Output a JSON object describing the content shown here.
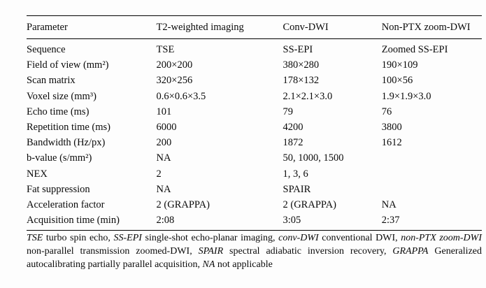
{
  "table": {
    "headers": [
      "Parameter",
      "T2-weighted imaging",
      "Conv-DWI",
      "Non-PTX zoom-DWI"
    ],
    "rows": [
      [
        "Sequence",
        "TSE",
        "SS-EPI",
        "Zoomed SS-EPI"
      ],
      [
        "Field of view (mm²)",
        "200×200",
        "380×280",
        "190×109"
      ],
      [
        "Scan matrix",
        "320×256",
        "178×132",
        "100×56"
      ],
      [
        "Voxel size (mm³)",
        "0.6×0.6×3.5",
        "2.1×2.1×3.0",
        "1.9×1.9×3.0"
      ],
      [
        "Echo time (ms)",
        "101",
        "79",
        "76"
      ],
      [
        "Repetition time (ms)",
        "6000",
        "4200",
        "3800"
      ],
      [
        "Bandwidth (Hz/px)",
        "200",
        "1872",
        "1612"
      ],
      [
        "b-value (s/mm²)",
        "NA",
        "50, 1000, 1500",
        ""
      ],
      [
        "NEX",
        "2",
        "1, 3, 6",
        ""
      ],
      [
        "Fat suppression",
        "NA",
        "SPAIR",
        ""
      ],
      [
        "Acceleration factor",
        "2 (GRAPPA)",
        "2 (GRAPPA)",
        "NA"
      ],
      [
        "Acquisition time (min)",
        "2:08",
        "3:05",
        "2:37"
      ]
    ]
  },
  "footnote": {
    "segments": [
      {
        "text": "TSE",
        "italic": true
      },
      {
        "text": " turbo spin echo, ",
        "italic": false
      },
      {
        "text": "SS-EPI",
        "italic": true
      },
      {
        "text": " single-shot echo-planar imaging, ",
        "italic": false
      },
      {
        "text": "conv-DWI",
        "italic": true
      },
      {
        "text": " conventional DWI, ",
        "italic": false
      },
      {
        "text": "non-PTX zoom-DWI",
        "italic": true
      },
      {
        "text": " non-parallel transmission zoomed-DWI, ",
        "italic": false
      },
      {
        "text": "SPAIR",
        "italic": true
      },
      {
        "text": " spectral adiabatic inversion recovery, ",
        "italic": false
      },
      {
        "text": "GRAPPA",
        "italic": true
      },
      {
        "text": " Generalized autocalibrating partially parallel acquisition, ",
        "italic": false
      },
      {
        "text": "NA",
        "italic": true
      },
      {
        "text": " not applicable",
        "italic": false
      }
    ]
  }
}
